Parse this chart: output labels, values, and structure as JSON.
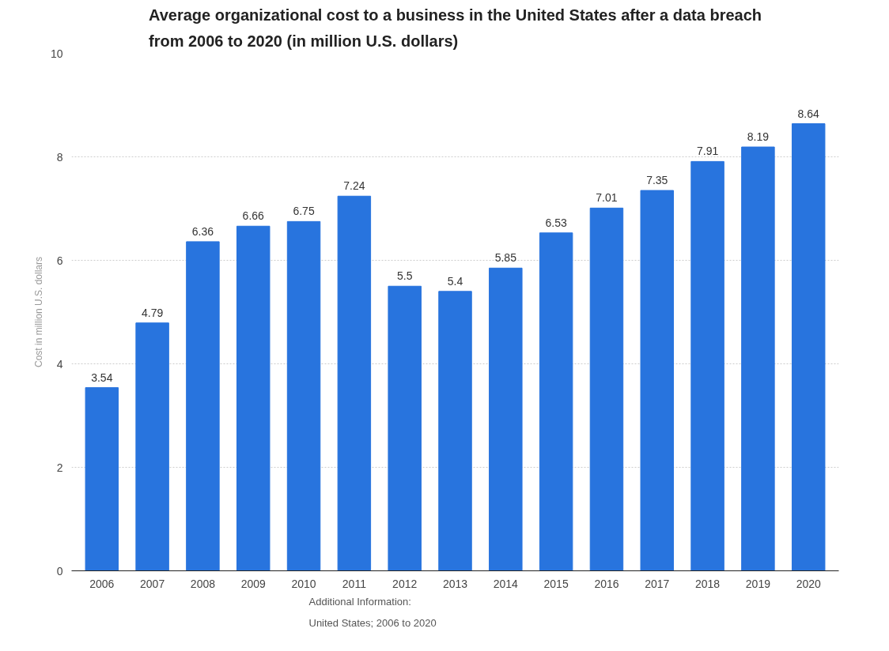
{
  "chart_data": {
    "type": "bar",
    "title": "Average organizational cost to a business in the United States after a data breach from 2006 to 2020 (in million U.S. dollars)",
    "ylabel": "Cost in million U.S. dollars",
    "categories": [
      "2006",
      "2007",
      "2008",
      "2009",
      "2010",
      "2011",
      "2012",
      "2013",
      "2014",
      "2015",
      "2016",
      "2017",
      "2018",
      "2019",
      "2020"
    ],
    "values": [
      3.54,
      4.79,
      6.36,
      6.66,
      6.75,
      7.24,
      5.5,
      5.4,
      5.85,
      6.53,
      7.01,
      7.35,
      7.91,
      8.19,
      8.64
    ],
    "color": "#2874de",
    "ylim": [
      0,
      10
    ],
    "yticks": [
      0,
      2,
      4,
      6,
      8,
      10
    ],
    "grid": "y",
    "data_labels": true,
    "annotations": [
      "Additional Information:",
      "United States; 2006 to 2020"
    ]
  }
}
